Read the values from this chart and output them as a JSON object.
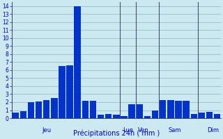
{
  "bar_values": [
    0.7,
    0.9,
    2.0,
    2.1,
    2.3,
    2.5,
    6.5,
    6.6,
    14.0,
    2.2,
    2.2,
    0.4,
    0.5,
    0.4,
    0.3,
    1.7,
    1.7,
    0.3,
    1.0,
    2.3,
    2.3,
    2.2,
    2.2,
    0.5,
    0.7,
    0.8,
    0.5
  ],
  "bar_color": "#0033cc",
  "background_color": "#cce8f0",
  "grid_color": "#99bbcc",
  "ylabel_ticks": [
    0,
    1,
    2,
    3,
    4,
    5,
    6,
    7,
    8,
    9,
    10,
    11,
    12,
    13,
    14
  ],
  "ylim": [
    0,
    14.5
  ],
  "xlabel": "Précipitations 24h ( mm )",
  "xlabel_color": "#0000bb",
  "tick_color": "#0000bb",
  "day_label_info": [
    [
      "Jeu",
      4.0
    ],
    [
      "Lun",
      14.5
    ],
    [
      "Ven",
      16.5
    ],
    [
      "Sam",
      20.5
    ],
    [
      "Dim",
      25.5
    ]
  ],
  "vline_positions": [
    13.5,
    15.5,
    18.5,
    23.5
  ],
  "axis_color": "#334466"
}
